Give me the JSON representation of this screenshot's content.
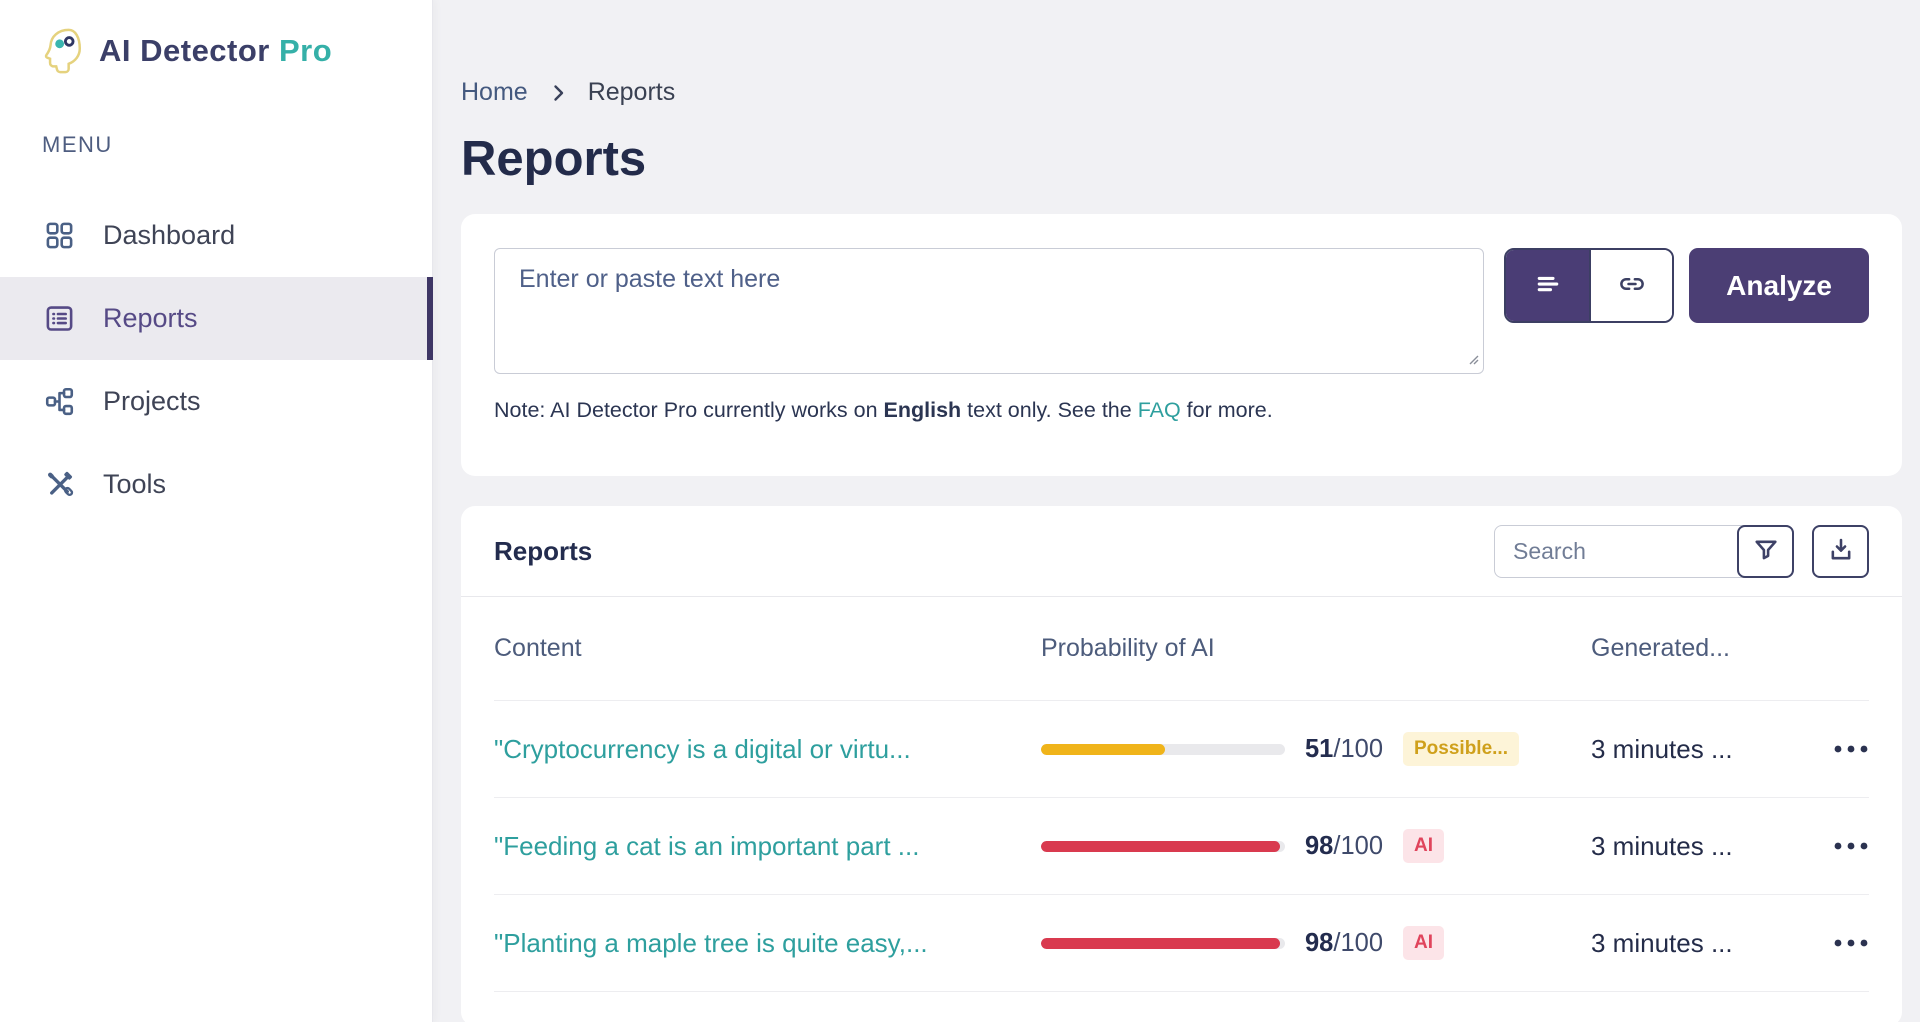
{
  "brand": {
    "name": "AI Detector",
    "suffix": "Pro",
    "logo_icon": "brain-head-icon"
  },
  "sidebar": {
    "menu_label": "MENU",
    "items": [
      {
        "label": "Dashboard",
        "icon": "dashboard-grid-icon",
        "active": false
      },
      {
        "label": "Reports",
        "icon": "reports-list-icon",
        "active": true
      },
      {
        "label": "Projects",
        "icon": "projects-sitemap-icon",
        "active": false
      },
      {
        "label": "Tools",
        "icon": "tools-icon",
        "active": false
      }
    ]
  },
  "breadcrumb": {
    "home": "Home",
    "current": "Reports"
  },
  "page": {
    "title": "Reports"
  },
  "analyzer": {
    "placeholder": "Enter or paste text here",
    "modes": [
      {
        "name": "text-mode",
        "icon": "text-lines-icon",
        "active": true
      },
      {
        "name": "link-mode",
        "icon": "link-icon",
        "active": false
      }
    ],
    "analyze_label": "Analyze",
    "note": {
      "prefix": "Note: AI Detector Pro currently works on ",
      "bold": "English",
      "middle": " text only. See the ",
      "link": "FAQ",
      "suffix": " for more."
    }
  },
  "reports_panel": {
    "heading": "Reports",
    "search_placeholder": "Search",
    "toolbar_icons": [
      "filter-funnel-icon",
      "download-icon"
    ],
    "columns": [
      "Content",
      "Probability of AI",
      "Generated..."
    ],
    "rows": [
      {
        "content": "\"Cryptocurrency is a digital or virtu...",
        "probability": 51,
        "score": "51",
        "score_suffix": "/100",
        "badge": "Possible...",
        "badge_type": "possible",
        "generated": "3 minutes ..."
      },
      {
        "content": "\"Feeding a cat is an important part ...",
        "probability": 98,
        "score": "98",
        "score_suffix": "/100",
        "badge": "AI",
        "badge_type": "ai",
        "generated": "3 minutes ..."
      },
      {
        "content": "\"Planting a maple tree is quite easy,...",
        "probability": 98,
        "score": "98",
        "score_suffix": "/100",
        "badge": "AI",
        "badge_type": "ai",
        "generated": "3 minutes ..."
      }
    ]
  },
  "colors": {
    "accent_purple": "#4b3e74",
    "sidebar_active": "#564a86",
    "link_teal": "#2e9f9e",
    "progress_yellow": "#f0b41a",
    "progress_red": "#d93a4f",
    "progress_track": "#e9e9ec",
    "badge_possible_bg": "#fdf4d8",
    "badge_possible_text": "#cfa01b",
    "badge_ai_bg": "#fce4e8",
    "badge_ai_text": "#e0445c"
  }
}
